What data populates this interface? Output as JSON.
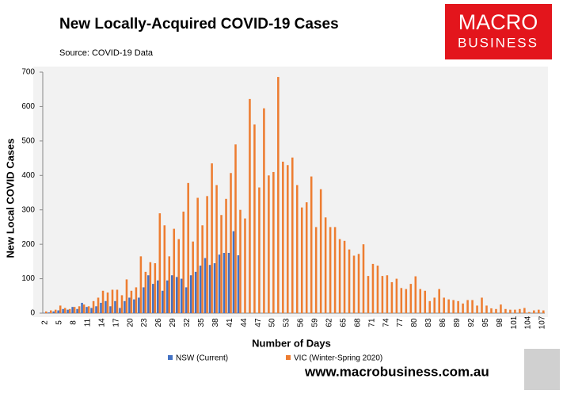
{
  "chart_data": {
    "type": "bar",
    "title": "New Locally-Acquired COVID-19 Cases",
    "subtitle": "Source: COVID-19 Data",
    "x_label": "Number of Days",
    "y_label": "New Local COVID Cases",
    "categories": [
      2,
      null,
      null,
      5,
      null,
      null,
      8,
      null,
      null,
      11,
      null,
      null,
      14,
      null,
      null,
      17,
      null,
      null,
      20,
      null,
      null,
      23,
      null,
      null,
      26,
      null,
      null,
      29,
      null,
      null,
      32,
      null,
      null,
      35,
      null,
      null,
      38,
      null,
      null,
      41,
      null,
      null,
      44,
      null,
      null,
      47,
      null,
      null,
      50,
      null,
      null,
      53,
      null,
      null,
      56,
      null,
      null,
      59,
      null,
      null,
      62,
      null,
      null,
      65,
      null,
      null,
      68,
      null,
      null,
      71,
      null,
      null,
      74,
      null,
      null,
      77,
      null,
      null,
      80,
      null,
      null,
      83,
      null,
      null,
      86,
      null,
      null,
      89,
      null,
      null,
      92,
      null,
      null,
      95,
      null,
      null,
      98,
      null,
      null,
      101,
      null,
      null,
      104,
      null,
      null,
      107
    ],
    "series": [
      {
        "name": "NSW (Current)",
        "color": "#4472c4",
        "values": [
          1,
          2,
          5,
          8,
          12,
          10,
          18,
          12,
          30,
          18,
          15,
          20,
          30,
          35,
          20,
          35,
          15,
          35,
          45,
          40,
          45,
          75,
          110,
          85,
          95,
          65,
          95,
          110,
          105,
          100,
          75,
          110,
          120,
          138,
          160,
          140,
          145,
          170,
          175,
          175,
          238,
          168,
          null,
          null,
          null,
          null,
          null,
          null,
          null,
          null,
          null,
          null,
          null,
          null,
          null,
          null,
          null,
          null,
          null,
          null,
          null,
          null,
          null,
          null,
          null,
          null,
          null,
          null,
          null,
          null,
          null,
          null,
          null,
          null,
          null,
          null,
          null,
          null,
          null,
          null,
          null,
          null,
          null,
          null,
          null,
          null,
          null,
          null,
          null,
          null,
          null,
          null,
          null,
          null,
          null,
          null,
          null,
          null,
          null,
          null,
          null,
          null,
          null,
          null,
          null,
          null
        ]
      },
      {
        "name": "VIC (Winter-Spring 2020)",
        "color": "#ed7d31",
        "values": [
          5,
          8,
          10,
          22,
          15,
          12,
          18,
          20,
          25,
          20,
          35,
          45,
          65,
          60,
          68,
          68,
          52,
          98,
          65,
          75,
          165,
          120,
          148,
          145,
          290,
          255,
          165,
          245,
          215,
          295,
          378,
          208,
          335,
          255,
          340,
          435,
          372,
          285,
          332,
          407,
          490,
          300,
          275,
          622,
          548,
          365,
          595,
          400,
          410,
          686,
          440,
          430,
          452,
          372,
          307,
          322,
          397,
          250,
          360,
          278,
          250,
          250,
          215,
          210,
          185,
          167,
          172,
          200,
          108,
          143,
          138,
          108,
          110,
          90,
          100,
          73,
          70,
          85,
          107,
          70,
          65,
          35,
          45,
          70,
          45,
          40,
          38,
          35,
          28,
          38,
          38,
          22,
          45,
          22,
          14,
          12,
          25,
          12,
          10,
          10,
          12,
          15,
          3,
          8,
          10,
          8
        ]
      }
    ],
    "ylim": [
      0,
      700
    ],
    "yticks": [
      0,
      100,
      200,
      300,
      400,
      500,
      600,
      700
    ],
    "legend": "bottom"
  },
  "logo": {
    "line1": "MACRO",
    "line2": "BUSINESS"
  },
  "footer": "www.macrobusiness.com.au"
}
